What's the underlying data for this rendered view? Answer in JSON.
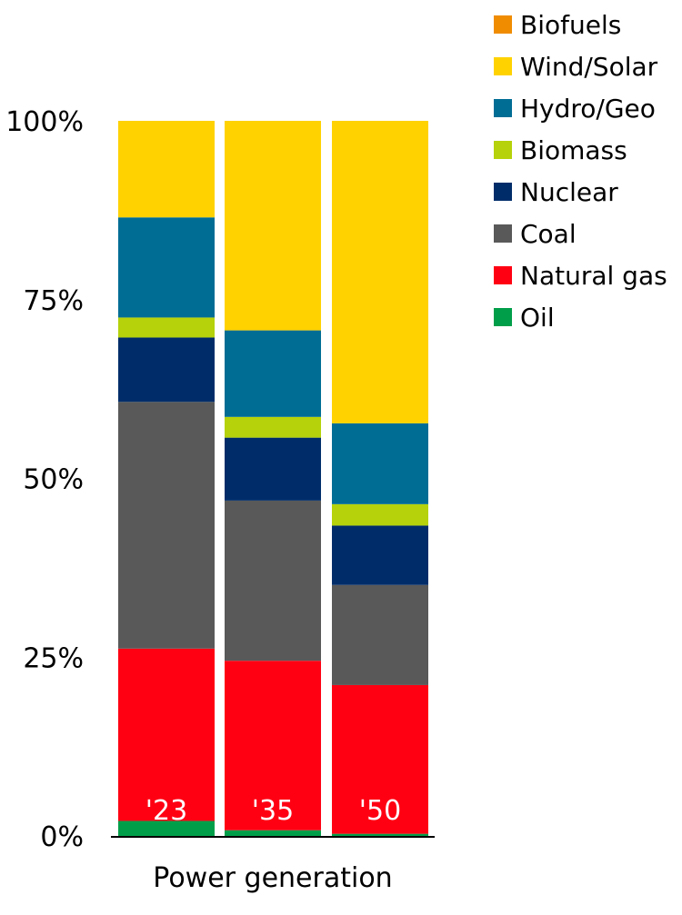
{
  "chart_data": {
    "type": "bar",
    "stacked": true,
    "percent": true,
    "xlabel": "Power generation",
    "categories": [
      "'23",
      "'35",
      "'50"
    ],
    "ylim": [
      0,
      100
    ],
    "yticks": [
      "0%",
      "25%",
      "50%",
      "75%",
      "100%"
    ],
    "ytick_values": [
      0,
      25,
      50,
      75,
      100
    ],
    "grid": false,
    "legend_position": "top-right",
    "series": [
      {
        "name": "Oil",
        "color": "#009E49",
        "values": [
          2.1,
          0.8,
          0.3
        ]
      },
      {
        "name": "Natural gas",
        "color": "#FF0013",
        "values": [
          24.1,
          23.7,
          20.8
        ]
      },
      {
        "name": "Coal",
        "color": "#595959",
        "values": [
          34.5,
          22.4,
          14.0
        ]
      },
      {
        "name": "Nuclear",
        "color": "#002D6A",
        "values": [
          9.0,
          8.8,
          8.3
        ]
      },
      {
        "name": "Biomass",
        "color": "#B5D20A",
        "values": [
          2.8,
          2.9,
          3.0
        ]
      },
      {
        "name": "Hydro/Geo",
        "color": "#006D95",
        "values": [
          14.0,
          12.1,
          11.3
        ]
      },
      {
        "name": "Wind/Solar",
        "color": "#FFD200",
        "values": [
          13.5,
          29.3,
          42.3
        ]
      },
      {
        "name": "Biofuels",
        "color": "#F08C00",
        "values": [
          0,
          0,
          0
        ]
      }
    ],
    "legend_order": [
      "Biofuels",
      "Wind/Solar",
      "Hydro/Geo",
      "Biomass",
      "Nuclear",
      "Coal",
      "Natural gas",
      "Oil"
    ]
  }
}
